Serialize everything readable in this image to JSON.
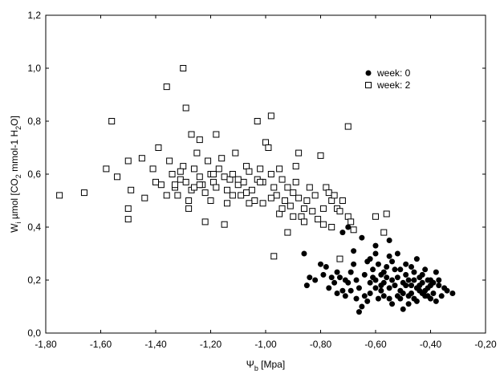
{
  "chart_data": {
    "type": "scatter",
    "title": "",
    "x_axis": {
      "label_main": "Ψ",
      "label_sub": "b",
      "label_rest": " [Mpa]",
      "range": [
        -1.8,
        -0.2
      ],
      "ticks": [
        "-1,80",
        "-1,60",
        "-1,40",
        "-1,20",
        "-1,00",
        "-0,80",
        "-0,60",
        "-0,40",
        "-0,20"
      ]
    },
    "y_axis": {
      "label_parts": [
        {
          "t": "W",
          "s": "normal"
        },
        {
          "t": "i",
          "s": "sub"
        },
        {
          "t": " µmol [CO",
          "s": "normal"
        },
        {
          "t": "2",
          "s": "sub"
        },
        {
          "t": " mmol-1 H",
          "s": "normal"
        },
        {
          "t": "2",
          "s": "sub"
        },
        {
          "t": "O]",
          "s": "normal"
        }
      ],
      "range": [
        0.0,
        1.2
      ],
      "ticks": [
        "0,0",
        "0,2",
        "0,4",
        "0,6",
        "0,8",
        "1,0",
        "1,2"
      ]
    },
    "grid": false,
    "legend_position": "top-right",
    "series": [
      {
        "name": "week: 0",
        "marker": "filled-circle",
        "color": "#000000",
        "points": [
          [
            -0.72,
            0.38
          ],
          [
            -0.7,
            0.4
          ],
          [
            -0.68,
            0.31
          ],
          [
            -0.65,
            0.36
          ],
          [
            -0.6,
            0.33
          ],
          [
            -0.55,
            0.35
          ],
          [
            -0.52,
            0.3
          ],
          [
            -0.45,
            0.28
          ],
          [
            -0.42,
            0.24
          ],
          [
            -0.4,
            0.2
          ],
          [
            -0.35,
            0.17
          ],
          [
            -0.32,
            0.15
          ],
          [
            -0.38,
            0.12
          ],
          [
            -0.42,
            0.14
          ],
          [
            -0.48,
            0.11
          ],
          [
            -0.5,
            0.09
          ],
          [
            -0.55,
            0.13
          ],
          [
            -0.58,
            0.18
          ],
          [
            -0.6,
            0.2
          ],
          [
            -0.62,
            0.15
          ],
          [
            -0.65,
            0.1
          ],
          [
            -0.66,
            0.08
          ],
          [
            -0.64,
            0.22
          ],
          [
            -0.63,
            0.27
          ],
          [
            -0.61,
            0.24
          ],
          [
            -0.59,
            0.26
          ],
          [
            -0.57,
            0.23
          ],
          [
            -0.56,
            0.21
          ],
          [
            -0.54,
            0.2
          ],
          [
            -0.53,
            0.18
          ],
          [
            -0.51,
            0.16
          ],
          [
            -0.5,
            0.19
          ],
          [
            -0.49,
            0.22
          ],
          [
            -0.47,
            0.25
          ],
          [
            -0.46,
            0.2
          ],
          [
            -0.44,
            0.18
          ],
          [
            -0.43,
            0.15
          ],
          [
            -0.41,
            0.17
          ],
          [
            -0.39,
            0.19
          ],
          [
            -0.38,
            0.23
          ],
          [
            -0.37,
            0.18
          ],
          [
            -0.36,
            0.14
          ],
          [
            -0.34,
            0.16
          ],
          [
            -0.86,
            0.3
          ],
          [
            -0.85,
            0.18
          ],
          [
            -0.82,
            0.2
          ],
          [
            -0.8,
            0.26
          ],
          [
            -0.79,
            0.22
          ],
          [
            -0.77,
            0.17
          ],
          [
            -0.75,
            0.19
          ],
          [
            -0.74,
            0.23
          ],
          [
            -0.73,
            0.21
          ],
          [
            -0.72,
            0.16
          ],
          [
            -0.71,
            0.14
          ],
          [
            -0.7,
            0.19
          ],
          [
            -0.69,
            0.23
          ],
          [
            -0.68,
            0.26
          ],
          [
            -0.67,
            0.2
          ],
          [
            -0.66,
            0.17
          ],
          [
            -0.64,
            0.14
          ],
          [
            -0.62,
            0.19
          ],
          [
            -0.61,
            0.21
          ],
          [
            -0.6,
            0.17
          ],
          [
            -0.59,
            0.13
          ],
          [
            -0.58,
            0.16
          ],
          [
            -0.57,
            0.19
          ],
          [
            -0.56,
            0.25
          ],
          [
            -0.55,
            0.29
          ],
          [
            -0.54,
            0.27
          ],
          [
            -0.53,
            0.24
          ],
          [
            -0.52,
            0.21
          ],
          [
            -0.51,
            0.13
          ],
          [
            -0.5,
            0.15
          ],
          [
            -0.49,
            0.18
          ],
          [
            -0.48,
            0.2
          ],
          [
            -0.47,
            0.15
          ],
          [
            -0.46,
            0.13
          ],
          [
            -0.45,
            0.17
          ],
          [
            -0.44,
            0.21
          ],
          [
            -0.43,
            0.19
          ],
          [
            -0.42,
            0.16
          ],
          [
            -0.41,
            0.2
          ],
          [
            -0.4,
            0.13
          ],
          [
            -0.39,
            0.15
          ],
          [
            -0.62,
            0.28
          ],
          [
            -0.6,
            0.3
          ],
          [
            -0.58,
            0.22
          ],
          [
            -0.57,
            0.14
          ],
          [
            -0.55,
            0.17
          ],
          [
            -0.54,
            0.11
          ],
          [
            -0.52,
            0.14
          ],
          [
            -0.51,
            0.24
          ],
          [
            -0.49,
            0.26
          ],
          [
            -0.48,
            0.14
          ],
          [
            -0.47,
            0.18
          ],
          [
            -0.46,
            0.23
          ],
          [
            -0.45,
            0.12
          ],
          [
            -0.44,
            0.16
          ],
          [
            -0.43,
            0.22
          ],
          [
            -0.41,
            0.14
          ],
          [
            -0.4,
            0.18
          ],
          [
            -0.37,
            0.2
          ],
          [
            -0.63,
            0.12
          ],
          [
            -0.67,
            0.13
          ],
          [
            -0.69,
            0.16
          ],
          [
            -0.71,
            0.2
          ],
          [
            -0.74,
            0.15
          ],
          [
            -0.76,
            0.21
          ],
          [
            -0.78,
            0.25
          ],
          [
            -0.84,
            0.21
          ]
        ]
      },
      {
        "name": "week: 2",
        "marker": "open-square",
        "color": "#000000",
        "points": [
          [
            -1.3,
            1.0
          ],
          [
            -1.36,
            0.93
          ],
          [
            -1.29,
            0.85
          ],
          [
            -1.56,
            0.8
          ],
          [
            -1.27,
            0.75
          ],
          [
            -1.18,
            0.75
          ],
          [
            -1.24,
            0.73
          ],
          [
            -1.03,
            0.8
          ],
          [
            -0.98,
            0.82
          ],
          [
            -0.7,
            0.78
          ],
          [
            -1.75,
            0.52
          ],
          [
            -1.66,
            0.53
          ],
          [
            -1.58,
            0.62
          ],
          [
            -1.54,
            0.59
          ],
          [
            -1.5,
            0.65
          ],
          [
            -1.49,
            0.54
          ],
          [
            -1.5,
            0.47
          ],
          [
            -1.5,
            0.43
          ],
          [
            -1.45,
            0.66
          ],
          [
            -1.41,
            0.62
          ],
          [
            -1.39,
            0.7
          ],
          [
            -1.38,
            0.56
          ],
          [
            -1.35,
            0.65
          ],
          [
            -1.34,
            0.6
          ],
          [
            -1.33,
            0.55
          ],
          [
            -1.32,
            0.52
          ],
          [
            -1.31,
            0.58
          ],
          [
            -1.3,
            0.63
          ],
          [
            -1.29,
            0.57
          ],
          [
            -1.28,
            0.5
          ],
          [
            -1.27,
            0.54
          ],
          [
            -1.26,
            0.62
          ],
          [
            -1.25,
            0.68
          ],
          [
            -1.24,
            0.59
          ],
          [
            -1.23,
            0.56
          ],
          [
            -1.22,
            0.53
          ],
          [
            -1.21,
            0.65
          ],
          [
            -1.2,
            0.6
          ],
          [
            -1.19,
            0.57
          ],
          [
            -1.18,
            0.55
          ],
          [
            -1.17,
            0.62
          ],
          [
            -1.16,
            0.66
          ],
          [
            -1.15,
            0.59
          ],
          [
            -1.14,
            0.54
          ],
          [
            -1.13,
            0.58
          ],
          [
            -1.12,
            0.6
          ],
          [
            -1.11,
            0.68
          ],
          [
            -1.1,
            0.56
          ],
          [
            -1.09,
            0.52
          ],
          [
            -1.08,
            0.57
          ],
          [
            -1.07,
            0.63
          ],
          [
            -1.06,
            0.61
          ],
          [
            -1.05,
            0.54
          ],
          [
            -1.04,
            0.5
          ],
          [
            -1.03,
            0.58
          ],
          [
            -1.02,
            0.62
          ],
          [
            -1.01,
            0.57
          ],
          [
            -1.0,
            0.72
          ],
          [
            -0.99,
            0.7
          ],
          [
            -0.98,
            0.6
          ],
          [
            -0.97,
            0.55
          ],
          [
            -0.96,
            0.52
          ],
          [
            -0.95,
            0.62
          ],
          [
            -0.94,
            0.58
          ],
          [
            -0.93,
            0.5
          ],
          [
            -0.92,
            0.55
          ],
          [
            -0.91,
            0.48
          ],
          [
            -0.9,
            0.53
          ],
          [
            -0.89,
            0.57
          ],
          [
            -0.88,
            0.51
          ],
          [
            -0.87,
            0.44
          ],
          [
            -0.86,
            0.42
          ],
          [
            -0.85,
            0.5
          ],
          [
            -0.84,
            0.55
          ],
          [
            -0.83,
            0.46
          ],
          [
            -0.82,
            0.52
          ],
          [
            -0.8,
            0.67
          ],
          [
            -0.79,
            0.47
          ],
          [
            -0.78,
            0.55
          ],
          [
            -0.77,
            0.53
          ],
          [
            -0.76,
            0.5
          ],
          [
            -0.75,
            0.52
          ],
          [
            -0.74,
            0.47
          ],
          [
            -0.73,
            0.46
          ],
          [
            -0.72,
            0.5
          ],
          [
            -0.7,
            0.44
          ],
          [
            -0.69,
            0.42
          ],
          [
            -0.68,
            0.39
          ],
          [
            -0.6,
            0.44
          ],
          [
            -0.56,
            0.45
          ],
          [
            -0.57,
            0.38
          ],
          [
            -0.73,
            0.28
          ],
          [
            -0.97,
            0.29
          ],
          [
            -1.22,
            0.42
          ],
          [
            -1.15,
            0.41
          ],
          [
            -1.44,
            0.51
          ],
          [
            -1.36,
            0.52
          ],
          [
            -0.88,
            0.68
          ],
          [
            -0.92,
            0.38
          ],
          [
            -1.19,
            0.6
          ],
          [
            -1.12,
            0.52
          ],
          [
            -1.06,
            0.49
          ],
          [
            -1.28,
            0.47
          ],
          [
            -1.33,
            0.56
          ],
          [
            -0.98,
            0.51
          ],
          [
            -0.95,
            0.45
          ],
          [
            -0.81,
            0.43
          ],
          [
            -0.76,
            0.4
          ],
          [
            -0.94,
            0.47
          ],
          [
            -1.1,
            0.58
          ],
          [
            -1.02,
            0.57
          ],
          [
            -1.26,
            0.55
          ],
          [
            -1.4,
            0.57
          ],
          [
            -1.14,
            0.49
          ],
          [
            -0.89,
            0.63
          ],
          [
            -0.86,
            0.47
          ],
          [
            -0.79,
            0.41
          ],
          [
            -0.9,
            0.44
          ],
          [
            -1.01,
            0.49
          ],
          [
            -1.07,
            0.53
          ],
          [
            -1.2,
            0.5
          ],
          [
            -1.24,
            0.56
          ],
          [
            -1.31,
            0.61
          ]
        ]
      }
    ]
  }
}
